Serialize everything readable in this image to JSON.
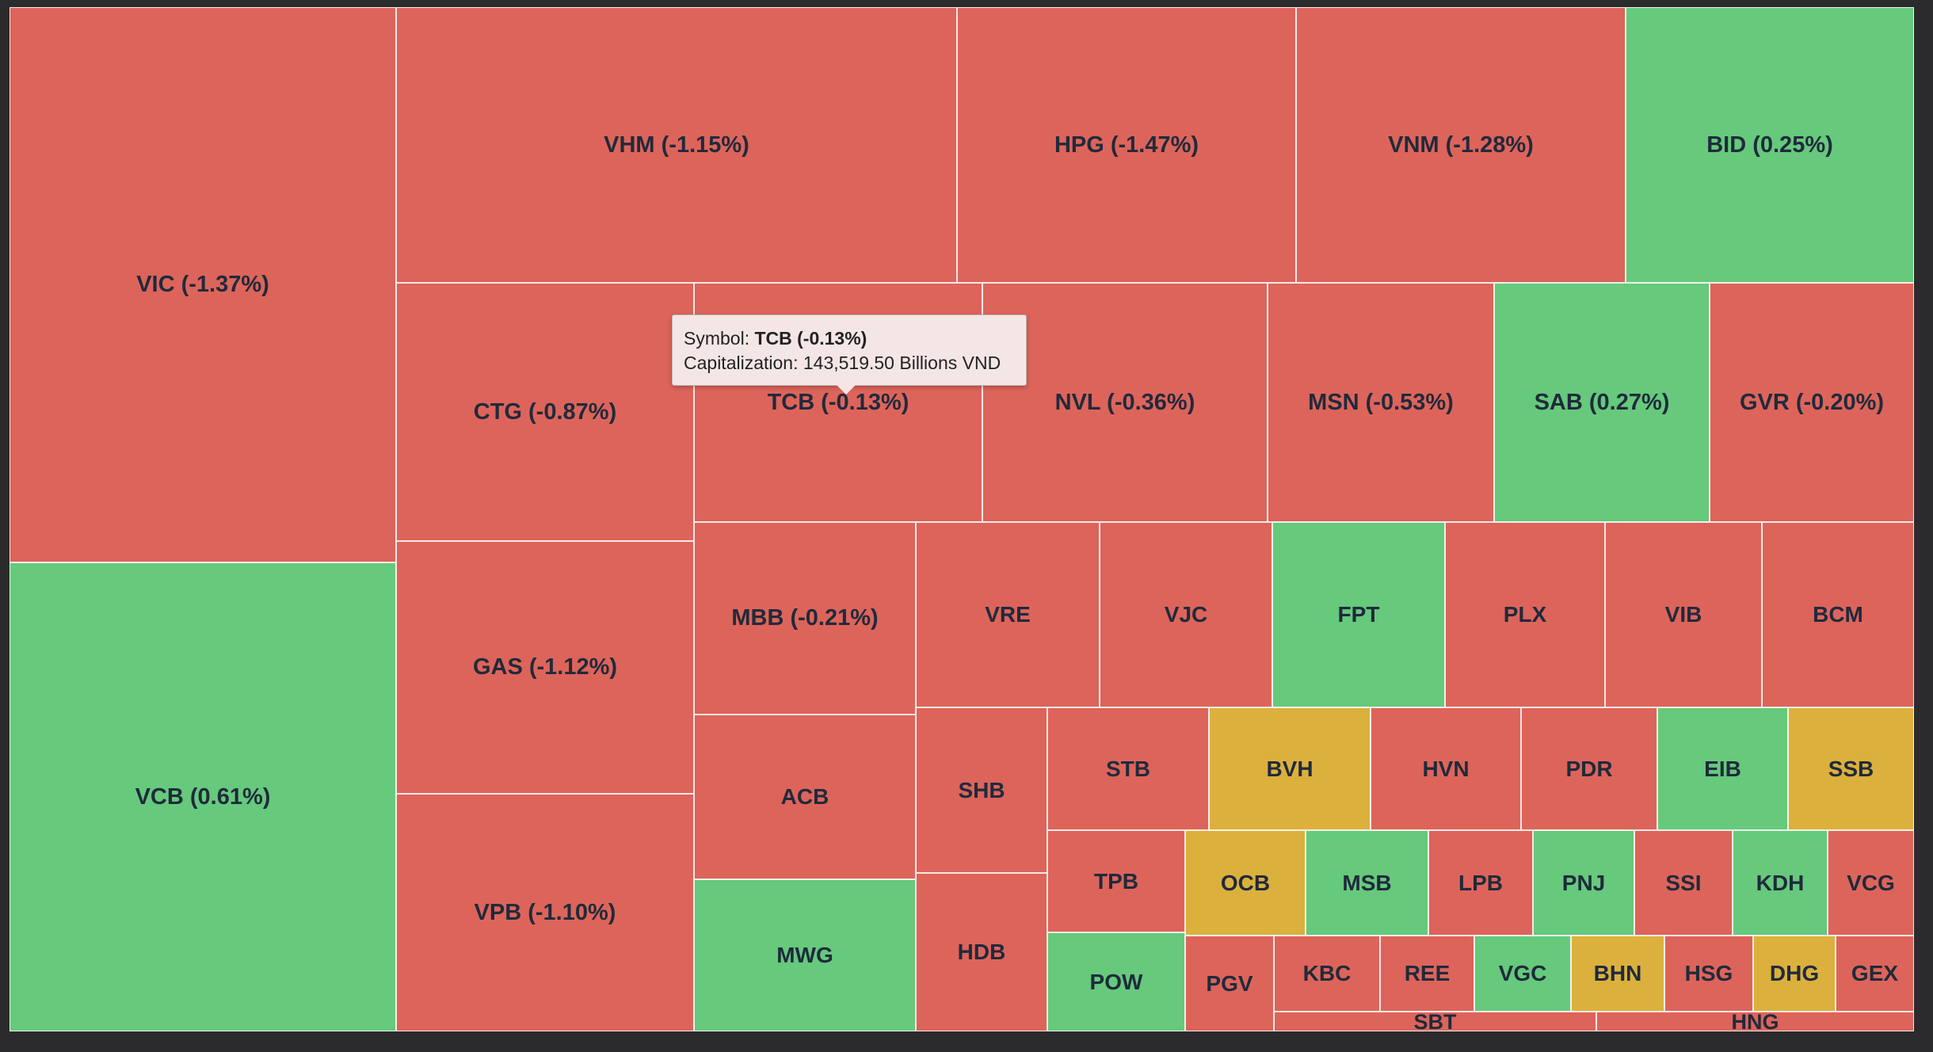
{
  "colors": {
    "down": "#dd645a",
    "up": "#66c97c",
    "unchanged": "#dcb03c",
    "background": "#2b2b2d",
    "label": "#1f2a3c"
  },
  "tooltip": {
    "symbol_prefix": "Symbol: ",
    "symbol_value": "TCB (-0.13%)",
    "cap_prefix": "Capitalization: ",
    "cap_value": "143,519.50",
    "cap_unit": " Billions VND"
  },
  "chart_data": {
    "type": "treemap",
    "color_legend": {
      "red": "decrease",
      "green": "increase",
      "yellow": "unchanged"
    },
    "items": [
      {
        "symbol": "VIC",
        "label": "VIC (-1.37%)",
        "change_pct": -1.37,
        "status": "down"
      },
      {
        "symbol": "VCB",
        "label": "VCB (0.61%)",
        "change_pct": 0.61,
        "status": "up"
      },
      {
        "symbol": "VHM",
        "label": "VHM (-1.15%)",
        "change_pct": -1.15,
        "status": "down"
      },
      {
        "symbol": "HPG",
        "label": "HPG (-1.47%)",
        "change_pct": -1.47,
        "status": "down"
      },
      {
        "symbol": "VNM",
        "label": "VNM (-1.28%)",
        "change_pct": -1.28,
        "status": "down"
      },
      {
        "symbol": "BID",
        "label": "BID (0.25%)",
        "change_pct": 0.25,
        "status": "up"
      },
      {
        "symbol": "CTG",
        "label": "CTG (-0.87%)",
        "change_pct": -0.87,
        "status": "down"
      },
      {
        "symbol": "TCB",
        "label": "TCB (-0.13%)",
        "change_pct": -0.13,
        "status": "down",
        "capitalization_billion_vnd": 143519.5
      },
      {
        "symbol": "NVL",
        "label": "NVL (-0.36%)",
        "change_pct": -0.36,
        "status": "down"
      },
      {
        "symbol": "MSN",
        "label": "MSN (-0.53%)",
        "change_pct": -0.53,
        "status": "down"
      },
      {
        "symbol": "SAB",
        "label": "SAB (0.27%)",
        "change_pct": 0.27,
        "status": "up"
      },
      {
        "symbol": "GVR",
        "label": "GVR (-0.20%)",
        "change_pct": -0.2,
        "status": "down"
      },
      {
        "symbol": "GAS",
        "label": "GAS (-1.12%)",
        "change_pct": -1.12,
        "status": "down"
      },
      {
        "symbol": "VPB",
        "label": "VPB (-1.10%)",
        "change_pct": -1.1,
        "status": "down"
      },
      {
        "symbol": "MBB",
        "label": "MBB (-0.21%)",
        "change_pct": -0.21,
        "status": "down"
      },
      {
        "symbol": "ACB",
        "label": "ACB",
        "status": "down"
      },
      {
        "symbol": "MWG",
        "label": "MWG",
        "status": "up"
      },
      {
        "symbol": "VRE",
        "label": "VRE",
        "status": "down"
      },
      {
        "symbol": "VJC",
        "label": "VJC",
        "status": "down"
      },
      {
        "symbol": "FPT",
        "label": "FPT",
        "status": "up"
      },
      {
        "symbol": "PLX",
        "label": "PLX",
        "status": "down"
      },
      {
        "symbol": "VIB",
        "label": "VIB",
        "status": "down"
      },
      {
        "symbol": "BCM",
        "label": "BCM",
        "status": "down"
      },
      {
        "symbol": "SHB",
        "label": "SHB",
        "status": "down"
      },
      {
        "symbol": "HDB",
        "label": "HDB",
        "status": "down"
      },
      {
        "symbol": "STB",
        "label": "STB",
        "status": "down"
      },
      {
        "symbol": "BVH",
        "label": "BVH",
        "status": "unchanged"
      },
      {
        "symbol": "HVN",
        "label": "HVN",
        "status": "down"
      },
      {
        "symbol": "PDR",
        "label": "PDR",
        "status": "down"
      },
      {
        "symbol": "EIB",
        "label": "EIB",
        "status": "up"
      },
      {
        "symbol": "SSB",
        "label": "SSB",
        "status": "unchanged"
      },
      {
        "symbol": "TPB",
        "label": "TPB",
        "status": "down"
      },
      {
        "symbol": "POW",
        "label": "POW",
        "status": "up"
      },
      {
        "symbol": "OCB",
        "label": "OCB",
        "status": "unchanged"
      },
      {
        "symbol": "MSB",
        "label": "MSB",
        "status": "up"
      },
      {
        "symbol": "LPB",
        "label": "LPB",
        "status": "down"
      },
      {
        "symbol": "PNJ",
        "label": "PNJ",
        "status": "up"
      },
      {
        "symbol": "SSI",
        "label": "SSI",
        "status": "down"
      },
      {
        "symbol": "KDH",
        "label": "KDH",
        "status": "up"
      },
      {
        "symbol": "VCG",
        "label": "VCG",
        "status": "down"
      },
      {
        "symbol": "PGV",
        "label": "PGV",
        "status": "down"
      },
      {
        "symbol": "KBC",
        "label": "KBC",
        "status": "down"
      },
      {
        "symbol": "REE",
        "label": "REE",
        "status": "down"
      },
      {
        "symbol": "VGC",
        "label": "VGC",
        "status": "up"
      },
      {
        "symbol": "BHN",
        "label": "BHN",
        "status": "unchanged"
      },
      {
        "symbol": "HSG",
        "label": "HSG",
        "status": "down"
      },
      {
        "symbol": "DHG",
        "label": "DHG",
        "status": "unchanged"
      },
      {
        "symbol": "GEX",
        "label": "GEX",
        "status": "down"
      },
      {
        "symbol": "SBT",
        "label": "SBT",
        "status": "down"
      },
      {
        "symbol": "HNG",
        "label": "HNG",
        "status": "down"
      }
    ]
  }
}
